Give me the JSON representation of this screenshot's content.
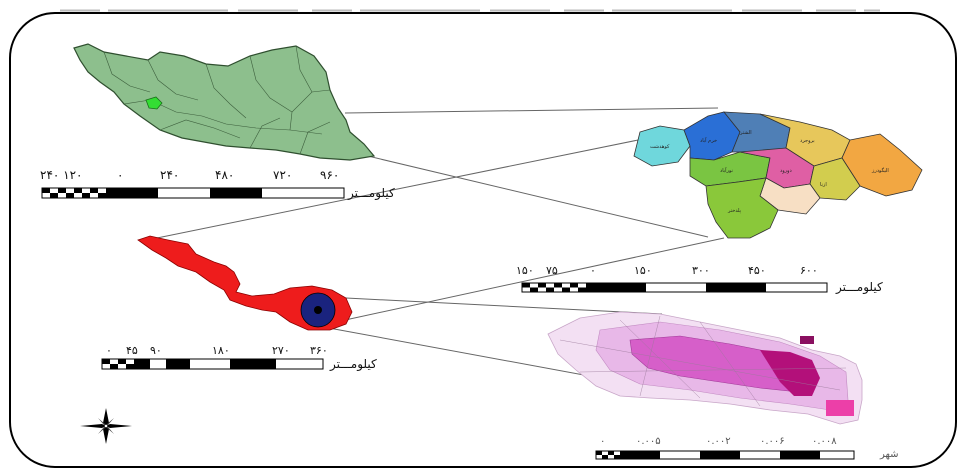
{
  "scale_bars": {
    "iran": {
      "ticks": [
        "۲۴۰ ۱۲۰",
        "۰",
        "۲۴۰",
        "۴۸۰",
        "۷۲۰",
        "۹۶۰"
      ],
      "unit": "کیلومـــتر"
    },
    "province": {
      "ticks": [
        "۱۵۰",
        "۷۵",
        "۰",
        "۱۵۰",
        "۳۰۰",
        "۴۵۰",
        "۶۰۰"
      ],
      "unit": "کیلومـــتر"
    },
    "county": {
      "ticks": [
        "۰",
        "۴۵",
        "۹۰",
        "۱۸۰",
        "۲۷۰",
        "۳۶۰"
      ],
      "unit": "کیلومـــتر"
    },
    "city": {
      "ticks": [
        "۰",
        "۰.۰۰۵",
        "۰.۰۰۲",
        "۰.۰۰۶",
        "۰.۰۰۸"
      ],
      "unit": "ﺷﻬﺮ"
    }
  },
  "province_labels": [
    "ﮐﻮﻫﺪﺷﺖ",
    "ﺧﺮم آﺑﺎد",
    "ﭘﻠﺪﺧﺘﺮ",
    "الیگودرز",
    "ازﻧﺎ",
    "دورود",
    "ﺑﺮوﺟﺮد",
    "اﻟﺸﺘﺮ",
    "ﻧﻮرآﺑﺎد"
  ],
  "colors": {
    "iran_fill": "#8dbf8d",
    "iran_highlight": "#33dd33",
    "county_fill": "#ee1c1c",
    "city_center": "#1a237e",
    "city_fill_light": "#e8b8e8",
    "city_fill_dark": "#b3107a"
  },
  "icons": {
    "north_arrow": "compass-rose-icon"
  }
}
